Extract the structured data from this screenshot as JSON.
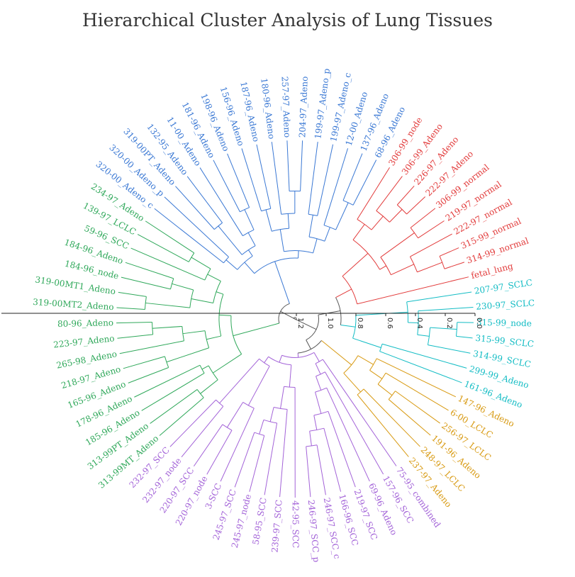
{
  "title": "Hierarchical Cluster Analysis of Lung Tissues",
  "colors": {
    "blue": "#3a78d4",
    "red": "#e23b3b",
    "cyan": "#12bcc4",
    "gold": "#d89a12",
    "purple": "#a363d8",
    "green": "#2fa85a",
    "trunk": "#555555"
  },
  "axis": {
    "ticks": [
      "1.2",
      "1.0",
      "0.8",
      "0.6",
      "0.4",
      "0.2",
      "0.0"
    ]
  },
  "clusters": [
    {
      "color": "red",
      "leaves": [
        "306-99_node",
        "306-99_Adeno",
        "226-97_Adeno",
        "222-97_Adeno",
        "306-99_normal",
        "219-97_normal",
        "222-97_normal",
        "315-99_normal",
        "314-99_normal",
        "fetal_lung"
      ]
    },
    {
      "color": "cyan",
      "leaves": [
        "207-97_SCLC",
        "230-97_SCLC",
        "315-99_node",
        "315-99_SCLC",
        "314-99_SCLC",
        "299-99_Adeno",
        "161-96_Adeno"
      ]
    },
    {
      "color": "gold",
      "leaves": [
        "147-96_Adeno",
        "6-00_LCLC",
        "256-97_LCLC",
        "191-96_Adeno",
        "248-97_LCLC",
        "237-97_Adeno"
      ]
    },
    {
      "color": "purple",
      "leaves": [
        "75-95_combined",
        "157-96_SCC",
        "69-96_Adeno",
        "219-97_SCC",
        "166-96_SCC",
        "246-97_SCC_c",
        "246-97_SCC_p",
        "42-95_SCC",
        "239-97_SCC",
        "58-95_SCC",
        "245-97_node",
        "245-97_SCC",
        "3-SCC",
        "220-97_node",
        "220-97_SCC",
        "232-97_node",
        "232-97_SCC"
      ]
    },
    {
      "color": "green",
      "leaves": [
        "313-99MT_Adeno",
        "313-99PT_Adeno",
        "185-96_Adeno",
        "178-96_Adeno",
        "165-96_Adeno",
        "218-97_Adeno",
        "265-98_Adeno",
        "223-97_Adeno",
        "80-96_Adeno",
        "319-00MT2_Adeno",
        "319-00MT1_Adeno",
        "184-96_node",
        "184-96_Adeno",
        "59-96_SCC",
        "139-97_LCLC",
        "234-97_Adeno"
      ]
    },
    {
      "color": "blue",
      "leaves": [
        "320-00_Adeno_c",
        "320-00_Adeno_p",
        "319-00PT_Adeno",
        "132-95_Adeno",
        "11-00_Adeno",
        "181-96_Adeno",
        "198-96_Adeno",
        "156-96_Adeno",
        "187-96_Adeno",
        "180-96_Adeno",
        "257-97_Adeno",
        "204-97_Adeno",
        "199-97_Adeno_p",
        "199-97_Adeno_c",
        "12-00_Adeno",
        "137-96_Adeno",
        "68-96_Adeno"
      ]
    }
  ]
}
